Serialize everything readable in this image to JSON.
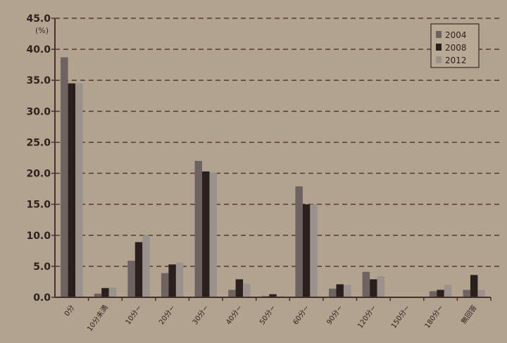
{
  "chart_data": {
    "type": "bar",
    "title": "",
    "xlabel": "",
    "ylabel": "(%)",
    "ylim": [
      0,
      45
    ],
    "yticks": [
      "0.0",
      "5.0",
      "10.0",
      "15.0",
      "20.0",
      "25.0",
      "30.0",
      "35.0",
      "40.0",
      "45.0"
    ],
    "grid": true,
    "legend_position": "top-right",
    "categories": [
      "0分",
      "10分未満",
      "10分~",
      "20分~",
      "30分~",
      "40分~",
      "50分~",
      "60分~",
      "90分~",
      "120分~",
      "150分~",
      "180分~",
      "無回答"
    ],
    "series": [
      {
        "name": "2004",
        "color": "#6e6360",
        "values": [
          38.7,
          0.6,
          5.9,
          3.9,
          22.0,
          1.2,
          0.2,
          17.9,
          1.4,
          4.1,
          0.1,
          1.0,
          1.2
        ]
      },
      {
        "name": "2008",
        "color": "#2a1f1d",
        "values": [
          34.5,
          1.5,
          8.9,
          5.3,
          20.3,
          2.9,
          0.5,
          15.0,
          2.1,
          2.9,
          0.1,
          1.2,
          3.6
        ]
      },
      {
        "name": "2012",
        "color": "#9b928c",
        "values": [
          34.5,
          1.6,
          10.0,
          5.6,
          20.1,
          2.2,
          0.2,
          15.0,
          2.0,
          3.4,
          0.1,
          2.0,
          1.2
        ]
      }
    ]
  }
}
